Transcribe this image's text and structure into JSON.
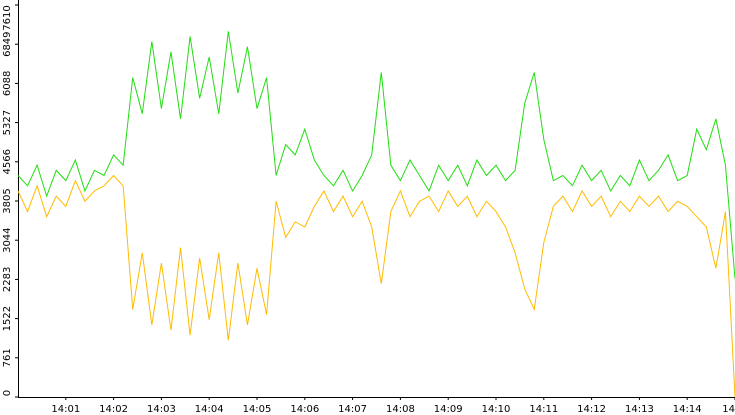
{
  "chart_data": {
    "type": "line",
    "categories": [
      null,
      null,
      null,
      null,
      null,
      "14:01",
      null,
      null,
      null,
      null,
      "14:02",
      null,
      null,
      null,
      null,
      "14:03",
      null,
      null,
      null,
      null,
      "14:04",
      null,
      null,
      null,
      null,
      "14:05",
      null,
      null,
      null,
      null,
      "14:06",
      null,
      null,
      null,
      null,
      "14:07",
      null,
      null,
      null,
      null,
      "14:08",
      null,
      null,
      null,
      null,
      "14:09",
      null,
      null,
      null,
      null,
      "14:10",
      null,
      null,
      null,
      null,
      "14:11",
      null,
      null,
      null,
      null,
      "14:12",
      null,
      null,
      null,
      null,
      "14:13",
      null,
      null,
      null,
      null,
      "14:14",
      null,
      null,
      null,
      null,
      "14"
    ],
    "series": [
      {
        "color": "#22dd11",
        "values": [
          4300,
          4100,
          4500,
          3900,
          4400,
          4200,
          4600,
          4000,
          4400,
          4300,
          4700,
          4500,
          6200,
          5500,
          6900,
          5600,
          6700,
          5400,
          7000,
          5800,
          6600,
          5500,
          7100,
          5900,
          6800,
          5600,
          6200,
          4300,
          4900,
          4700,
          5200,
          4600,
          4300,
          4100,
          4400,
          4000,
          4300,
          4700,
          6300,
          4500,
          4200,
          4600,
          4300,
          4000,
          4500,
          4200,
          4500,
          4100,
          4600,
          4300,
          4500,
          4200,
          4400,
          5700,
          6300,
          5000,
          4200,
          4300,
          4100,
          4500,
          4200,
          4400,
          4000,
          4300,
          4100,
          4600,
          4200,
          4400,
          4700,
          4200,
          4300,
          5200,
          4800,
          5400,
          4500,
          2300
        ]
      },
      {
        "color": "#ffbb00",
        "values": [
          4000,
          3600,
          4100,
          3500,
          3900,
          3700,
          4200,
          3800,
          4000,
          4100,
          4300,
          4100,
          1700,
          2800,
          1400,
          2600,
          1300,
          2900,
          1200,
          2700,
          1500,
          2800,
          1100,
          2600,
          1400,
          2500,
          1600,
          3800,
          3100,
          3400,
          3300,
          3700,
          4000,
          3600,
          3900,
          3500,
          3800,
          3300,
          2200,
          3600,
          4000,
          3500,
          3800,
          3900,
          3600,
          4000,
          3700,
          3900,
          3500,
          3800,
          3600,
          3300,
          2800,
          2100,
          1700,
          3000,
          3700,
          3900,
          3600,
          4000,
          3700,
          3900,
          3500,
          3800,
          3600,
          3900,
          3700,
          3900,
          3600,
          3800,
          3700,
          3500,
          3300,
          2500,
          3600,
          0
        ]
      }
    ],
    "ylim": [
      0,
      7610
    ],
    "yticks": [
      0,
      761,
      1522,
      2283,
      3044,
      3805,
      4566,
      5327,
      6088,
      6849,
      7610
    ]
  }
}
